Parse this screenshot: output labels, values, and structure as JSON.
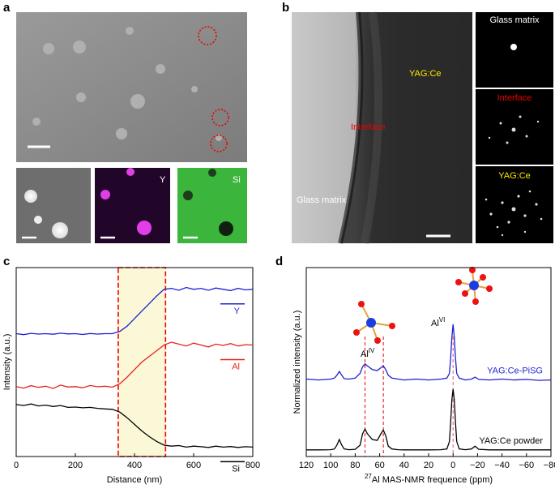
{
  "panels": {
    "a": {
      "label": "a",
      "map_labels": [
        "Y",
        "Si"
      ]
    },
    "b": {
      "label": "b",
      "tem_labels": [
        "YAG:Ce",
        "Interface",
        "Glass matrix"
      ],
      "diffraction_labels": [
        "Glass matrix",
        "Interface",
        "YAG:Ce"
      ]
    }
  },
  "chart_data": [
    {
      "type": "line",
      "panel_label": "c",
      "x_label": "Distance (nm)",
      "y_label": "Intensity (a.u.)",
      "xlim": [
        0,
        800
      ],
      "xticks": [
        0,
        200,
        400,
        600,
        800
      ],
      "ylim": [
        0,
        10
      ],
      "highlight": [
        345,
        505
      ],
      "x": [
        0,
        25,
        50,
        75,
        100,
        125,
        150,
        175,
        200,
        225,
        250,
        275,
        300,
        325,
        350,
        375,
        400,
        425,
        450,
        475,
        500,
        525,
        550,
        575,
        600,
        625,
        650,
        675,
        700,
        725,
        750,
        775,
        800
      ],
      "series": [
        {
          "name": "Y",
          "color": "#1f1fd6",
          "values": [
            6.5,
            6.45,
            6.52,
            6.48,
            6.5,
            6.47,
            6.53,
            6.49,
            6.5,
            6.46,
            6.51,
            6.48,
            6.5,
            6.5,
            6.62,
            6.9,
            7.3,
            7.7,
            8.1,
            8.5,
            8.85,
            8.9,
            8.8,
            8.95,
            8.85,
            8.9,
            8.8,
            8.92,
            8.85,
            8.78,
            8.9,
            8.82,
            8.85
          ]
        },
        {
          "name": "Al",
          "color": "#e8211c",
          "values": [
            3.7,
            3.62,
            3.75,
            3.66,
            3.72,
            3.6,
            3.78,
            3.68,
            3.7,
            3.64,
            3.76,
            3.69,
            3.72,
            3.67,
            3.85,
            4.2,
            4.6,
            5.0,
            5.3,
            5.6,
            5.9,
            6.05,
            5.95,
            5.85,
            6.0,
            5.9,
            5.8,
            5.95,
            5.88,
            5.98,
            5.85,
            5.92,
            5.9
          ]
        },
        {
          "name": "Si",
          "color": "#000000",
          "values": [
            2.75,
            2.7,
            2.78,
            2.68,
            2.72,
            2.65,
            2.7,
            2.6,
            2.62,
            2.58,
            2.6,
            2.55,
            2.52,
            2.5,
            2.35,
            2.05,
            1.7,
            1.35,
            1.05,
            0.8,
            0.6,
            0.55,
            0.58,
            0.5,
            0.55,
            0.52,
            0.48,
            0.55,
            0.5,
            0.53,
            0.48,
            0.52,
            0.5
          ]
        }
      ]
    },
    {
      "type": "line",
      "panel_label": "d",
      "x_label": {
        "sup": "27",
        "text": "Al MAS-NMR frequence (ppm)"
      },
      "y_label": "Normalized intensity (a.u.)",
      "xlim": [
        120,
        -80
      ],
      "xticks": [
        120,
        100,
        80,
        60,
        40,
        20,
        0,
        {
          "value": -20,
          "label": "−20"
        },
        {
          "value": -40,
          "label": "−40"
        },
        {
          "value": -60,
          "label": "−60"
        },
        {
          "value": -80,
          "label": "−80"
        }
      ],
      "ylim": [
        0,
        10
      ],
      "marker_lines": [
        72,
        57,
        0
      ],
      "annotations": [
        {
          "base": "Al",
          "sup": "IV"
        },
        {
          "base": "Al",
          "sup": "VI"
        }
      ],
      "x": [
        120,
        110,
        100,
        97,
        95,
        93,
        91,
        89,
        85,
        80,
        76,
        74,
        72,
        70,
        66,
        62,
        59,
        57,
        55,
        53,
        50,
        45,
        40,
        30,
        20,
        10,
        5,
        3,
        2,
        1,
        0,
        -1,
        -2,
        -3,
        -5,
        -10,
        -15,
        -18,
        -21,
        -30,
        -40,
        -50,
        -60,
        -70,
        -80
      ],
      "series": [
        {
          "name": "YAG:Ce-PiSG",
          "color": "#1f1fd6",
          "values": [
            4.1,
            4.05,
            4.1,
            4.15,
            4.3,
            4.5,
            4.3,
            4.12,
            4.1,
            4.15,
            4.4,
            4.75,
            4.9,
            4.8,
            4.6,
            4.55,
            4.7,
            4.8,
            4.6,
            4.3,
            4.15,
            4.1,
            4.05,
            4.1,
            4.05,
            4.1,
            4.15,
            4.4,
            5.2,
            6.3,
            7.0,
            6.3,
            5.2,
            4.4,
            4.15,
            4.05,
            4.1,
            4.2,
            4.08,
            4.05,
            4.1,
            4.05,
            4.08,
            4.03,
            4.05
          ]
        },
        {
          "name": "YAG:Ce powder",
          "color": "#000000",
          "values": [
            0.35,
            0.35,
            0.36,
            0.4,
            0.6,
            0.9,
            0.6,
            0.4,
            0.36,
            0.38,
            0.6,
            1.2,
            1.45,
            1.2,
            0.9,
            0.85,
            1.2,
            1.4,
            1.1,
            0.55,
            0.4,
            0.36,
            0.35,
            0.35,
            0.35,
            0.36,
            0.4,
            0.8,
            1.8,
            3.0,
            3.56,
            3.0,
            1.8,
            0.8,
            0.4,
            0.36,
            0.4,
            0.55,
            0.38,
            0.35,
            0.35,
            0.35,
            0.35,
            0.35,
            0.35
          ]
        }
      ]
    }
  ]
}
